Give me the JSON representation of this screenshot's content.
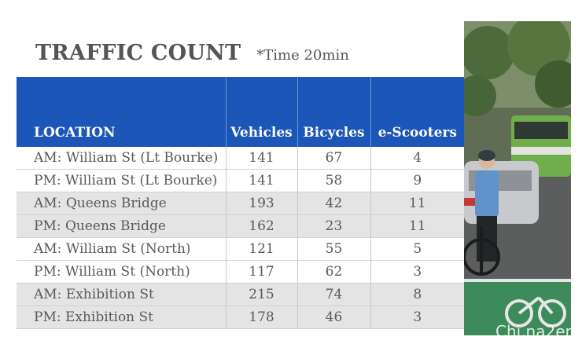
{
  "title": "TRAFFIC COUNT",
  "note": "*Time 20min",
  "table": {
    "headers": [
      "LOCATION",
      "Vehicles",
      "Bicycles",
      "e-Scooters"
    ],
    "rows": [
      [
        "AM: William St (Lt Bourke)",
        "141",
        "67",
        "4"
      ],
      [
        "PM: William St (Lt Bourke)",
        "141",
        "58",
        "9"
      ],
      [
        "AM: Queens Bridge",
        "193",
        "42",
        "11"
      ],
      [
        "PM: Queens Bridge",
        "162",
        "23",
        "11"
      ],
      [
        "AM: William St (North)",
        "121",
        "55",
        "5"
      ],
      [
        "PM: William St (North)",
        "117",
        "62",
        "3"
      ],
      [
        "AM: Exhibition St",
        "215",
        "74",
        "8"
      ],
      [
        "PM: Exhibition St",
        "178",
        "46",
        "3"
      ]
    ]
  },
  "photo": {
    "watermark": "Chi.na2er"
  },
  "colors": {
    "header_bg": "#1b56b8",
    "shade_row": "#e4e4e4",
    "title_text": "#555555"
  }
}
